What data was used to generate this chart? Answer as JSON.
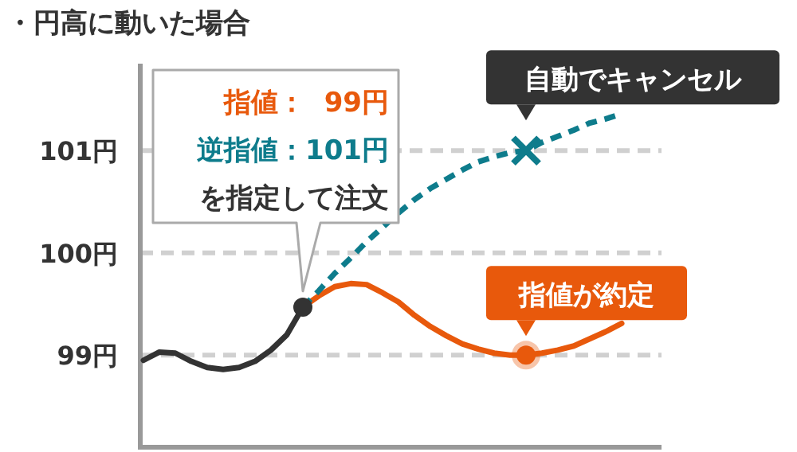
{
  "chart_data": {
    "type": "line",
    "title": "・円高に動いた場合",
    "categories": [
      null,
      null,
      null,
      null,
      null,
      null,
      null,
      null,
      null,
      null,
      null,
      null,
      null,
      null,
      null,
      null,
      null,
      null,
      null,
      null,
      null,
      null,
      null,
      null,
      null,
      null,
      null,
      null,
      null,
      null,
      null
    ],
    "series": [
      {
        "color": "#333333",
        "line_style": "solid",
        "values": [
          98.95,
          99.03,
          99.02,
          98.94,
          98.88,
          98.86,
          98.88,
          98.94,
          99.05,
          99.2,
          99.47,
          null,
          null,
          null,
          null,
          null,
          null,
          null,
          null,
          null,
          null,
          null,
          null,
          null,
          null,
          null,
          null,
          null,
          null,
          null,
          null
        ]
      },
      {
        "color": "#e8590c",
        "line_style": "solid",
        "values": [
          null,
          null,
          null,
          null,
          null,
          null,
          null,
          null,
          null,
          null,
          99.47,
          99.58,
          99.67,
          99.7,
          99.69,
          99.61,
          99.52,
          99.39,
          99.28,
          99.19,
          99.11,
          99.06,
          99.02,
          99.0,
          99.0,
          99.02,
          99.05,
          99.09,
          99.16,
          99.23,
          99.31
        ]
      },
      {
        "color": "#0e7c8c",
        "line_style": "dashed",
        "values": [
          null,
          null,
          null,
          null,
          null,
          null,
          null,
          null,
          null,
          null,
          99.47,
          99.63,
          99.8,
          99.95,
          100.11,
          100.25,
          100.39,
          100.52,
          100.63,
          100.72,
          100.81,
          100.89,
          100.94,
          100.98,
          101.0,
          101.08,
          101.14,
          101.2,
          101.27,
          101.31,
          101.36
        ]
      },
      {
        "type": "scatter",
        "marker": "circle",
        "color": "#333333",
        "values": [
          null,
          null,
          null,
          null,
          null,
          null,
          null,
          null,
          null,
          null,
          99.47,
          null,
          null,
          null,
          null,
          null,
          null,
          null,
          null,
          null,
          null,
          null,
          null,
          null,
          null,
          null,
          null,
          null,
          null,
          null,
          null
        ]
      },
      {
        "type": "scatter",
        "marker": "circle",
        "color": "#e8590c",
        "values": [
          null,
          null,
          null,
          null,
          null,
          null,
          null,
          null,
          null,
          null,
          null,
          null,
          null,
          null,
          null,
          null,
          null,
          null,
          null,
          null,
          null,
          null,
          null,
          null,
          99.0,
          null,
          null,
          null,
          null,
          null,
          null
        ]
      },
      {
        "type": "scatter",
        "marker": "cross",
        "color": "#0e7c8c",
        "values": [
          null,
          null,
          null,
          null,
          null,
          null,
          null,
          null,
          null,
          null,
          null,
          null,
          null,
          null,
          null,
          null,
          null,
          null,
          null,
          null,
          null,
          null,
          null,
          null,
          101.0,
          null,
          null,
          null,
          null,
          null,
          null
        ]
      }
    ],
    "ylim": [
      98.1,
      101.85
    ],
    "yticks": [
      {
        "value": 99,
        "label": "99円"
      },
      {
        "value": 100,
        "label": "100円"
      },
      {
        "value": 101,
        "label": "101円"
      }
    ],
    "grid": "y",
    "annotations": [
      "指値：  99円",
      "逆指値：101円",
      "を指定して注文",
      "自動でキャンセル",
      "指値が約定"
    ]
  }
}
